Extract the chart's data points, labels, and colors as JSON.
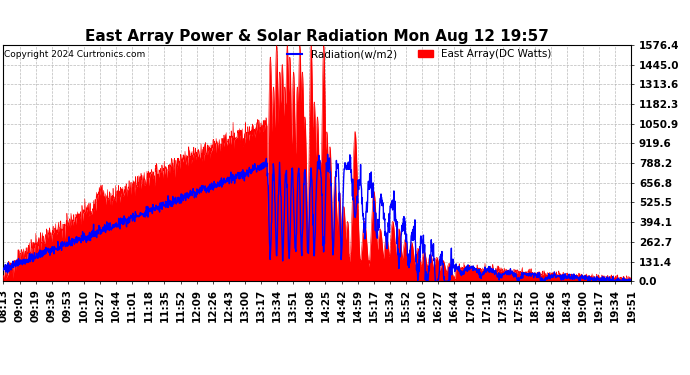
{
  "title": "East Array Power & Solar Radiation Mon Aug 12 19:57",
  "copyright": "Copyright 2024 Curtronics.com",
  "legend_radiation": "Radiation(w/m2)",
  "legend_east": "East Array(DC Watts)",
  "ymax": 1576.4,
  "yticks": [
    0.0,
    131.4,
    262.7,
    394.1,
    525.5,
    656.8,
    788.2,
    919.6,
    1050.9,
    1182.3,
    1313.6,
    1445.0,
    1576.4
  ],
  "xtick_labels": [
    "08:13",
    "09:02",
    "09:19",
    "09:36",
    "09:53",
    "10:10",
    "10:27",
    "10:44",
    "11:01",
    "11:18",
    "11:35",
    "11:52",
    "12:09",
    "12:26",
    "12:43",
    "13:00",
    "13:17",
    "13:34",
    "13:51",
    "14:08",
    "14:25",
    "14:42",
    "14:59",
    "15:17",
    "15:34",
    "15:52",
    "16:10",
    "16:27",
    "16:44",
    "17:01",
    "17:18",
    "17:35",
    "17:52",
    "18:10",
    "18:26",
    "18:43",
    "19:00",
    "19:17",
    "19:34",
    "19:51"
  ],
  "background_color": "#ffffff",
  "plot_bg_color": "#ffffff",
  "grid_color": "#aaaaaa",
  "radiation_color": "#0000ff",
  "east_color": "#ff0000",
  "title_fontsize": 11,
  "axis_fontsize": 7.5
}
